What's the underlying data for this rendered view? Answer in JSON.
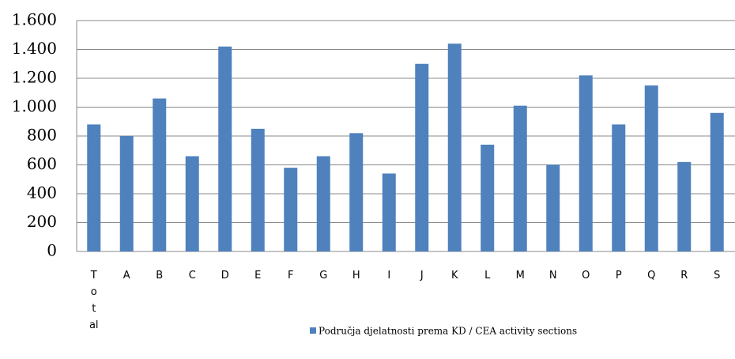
{
  "chart_data": {
    "type": "bar",
    "categories": [
      "Total",
      "A",
      "B",
      "C",
      "D",
      "E",
      "F",
      "G",
      "H",
      "I",
      "J",
      "K",
      "L",
      "M",
      "N",
      "O",
      "P",
      "Q",
      "R",
      "S"
    ],
    "series": [
      {
        "name": "Područja djelatnosti prema KD / CEA activity sections",
        "color": "#4f81bd",
        "values": [
          880,
          800,
          1060,
          660,
          1420,
          850,
          580,
          660,
          820,
          540,
          1300,
          1440,
          740,
          1010,
          600,
          1220,
          880,
          1150,
          620,
          960
        ]
      }
    ],
    "ylim": [
      0,
      1600
    ],
    "yticks": [
      {
        "value": 0,
        "label": "0"
      },
      {
        "value": 200,
        "label": "200"
      },
      {
        "value": 400,
        "label": "400"
      },
      {
        "value": 600,
        "label": "600"
      },
      {
        "value": 800,
        "label": "800"
      },
      {
        "value": 1000,
        "label": "1.000"
      },
      {
        "value": 1200,
        "label": "1.200"
      },
      {
        "value": 1400,
        "label": "1.400"
      },
      {
        "value": 1600,
        "label": "1.600"
      }
    ],
    "grid": true,
    "legend": "bottom"
  }
}
